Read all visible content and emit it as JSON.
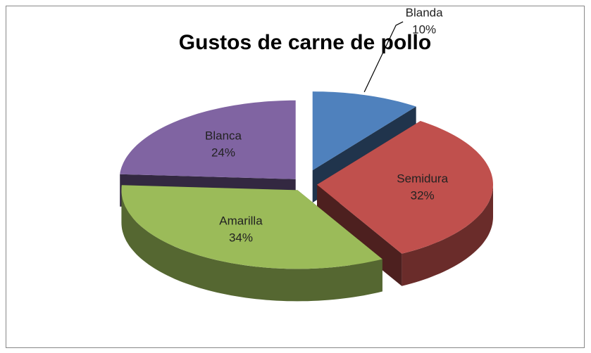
{
  "chart_data": {
    "type": "pie3d",
    "title": "Gustos de carne de pollo",
    "categories": [
      "Blanda",
      "Semidura",
      "Amarilla",
      "Blanca"
    ],
    "values": [
      10,
      32,
      34,
      24
    ],
    "value_labels": [
      "10%",
      "32%",
      "34%",
      "24%"
    ],
    "colors": [
      "#4f81bd",
      "#c0504d",
      "#9bbb59",
      "#8064a2"
    ]
  }
}
